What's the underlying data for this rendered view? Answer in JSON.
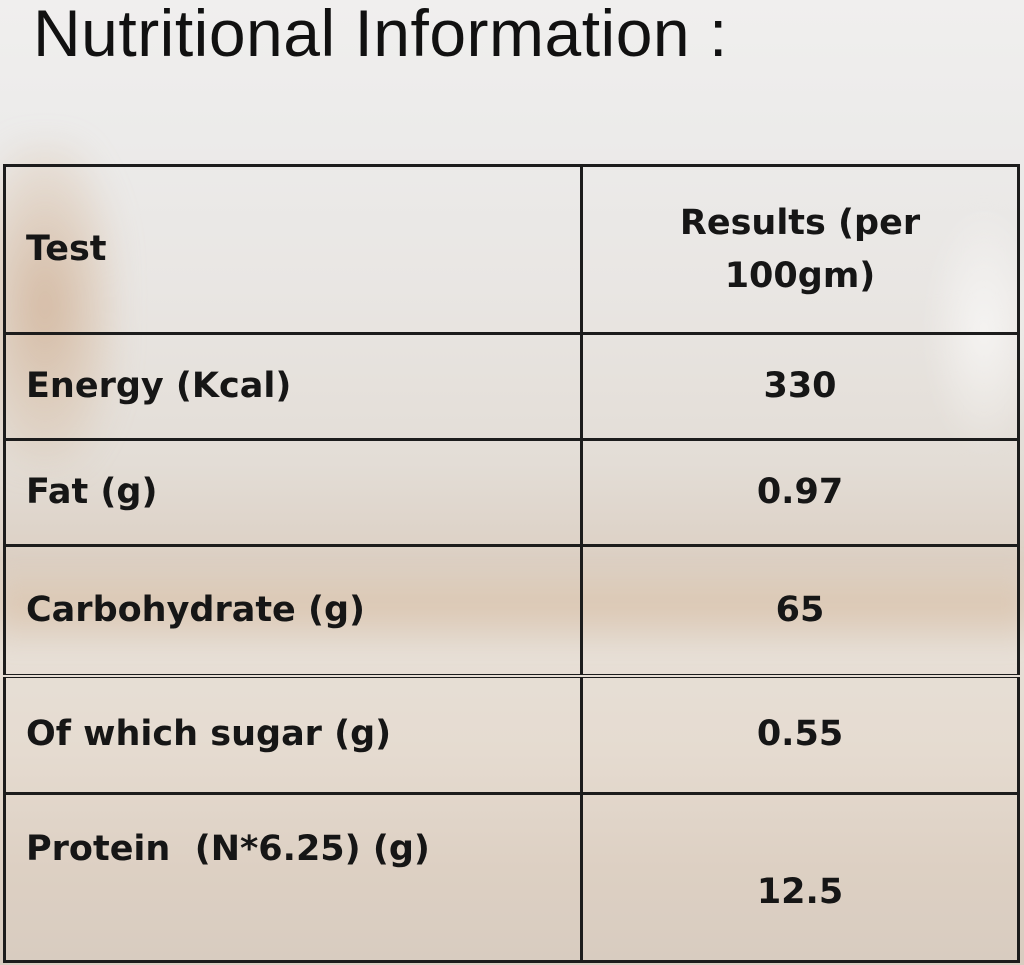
{
  "title": "Nutritional Information :",
  "table": {
    "header": {
      "test": "Test",
      "results": "Results (per 100gm)"
    },
    "rows": [
      {
        "test": "Energy (Kcal)",
        "result": "330"
      },
      {
        "test": "Fat (g)",
        "result": "0.97"
      },
      {
        "test": "Carbohydrate (g)",
        "result": "65"
      },
      {
        "test": "Of which sugar (g)",
        "result": "0.55"
      },
      {
        "test": "Protein  (N*6.25) (g)",
        "result": "12.5"
      }
    ]
  },
  "colors": {
    "text": "#161616",
    "border": "#1c1c1c",
    "background": "#e9e6e3"
  }
}
